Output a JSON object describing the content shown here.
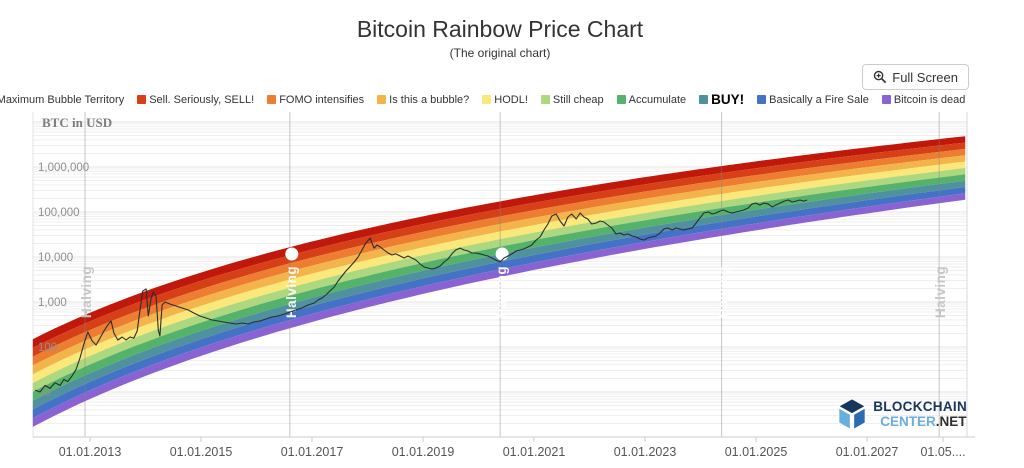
{
  "header": {
    "title": "Bitcoin Rainbow Price Chart",
    "subtitle": "(The original chart)"
  },
  "toolbar": {
    "fullscreen_label": "Full Screen"
  },
  "footer_logo": {
    "line1": "BLOCKCHAIN",
    "line2_light": "CENTER",
    "line2_dark": ".NET"
  },
  "chart_data": {
    "type": "area",
    "title": "Bitcoin Rainbow Price Chart",
    "scale": "log",
    "y_axis": {
      "label": "BTC in USD",
      "ticks": [
        {
          "label": "10",
          "value": 10
        },
        {
          "label": "100",
          "value": 100
        },
        {
          "label": "1,000",
          "value": 1000
        },
        {
          "label": "10,000",
          "value": 10000
        },
        {
          "label": "100,000",
          "value": 100000
        },
        {
          "label": "1,000,000",
          "value": 1000000
        }
      ]
    },
    "x_axis": {
      "ticks": [
        {
          "label": "01.01.2013",
          "year": 2013
        },
        {
          "label": "01.01.2015",
          "year": 2015
        },
        {
          "label": "01.01.2017",
          "year": 2017
        },
        {
          "label": "01.01.2019",
          "year": 2019
        },
        {
          "label": "01.01.2021",
          "year": 2021
        },
        {
          "label": "01.01.2023",
          "year": 2023
        },
        {
          "label": "01.01.2025",
          "year": 2025
        },
        {
          "label": "01.01.2027",
          "year": 2027
        },
        {
          "label": "01.05....",
          "year": 2028.37
        }
      ]
    },
    "bands": [
      {
        "name": "Maximum Bubble Territory",
        "color": "#c1180c"
      },
      {
        "name": "Sell. Seriously, SELL!",
        "color": "#d64018"
      },
      {
        "name": "FOMO intensifies",
        "color": "#ed7d31"
      },
      {
        "name": "Is this a bubble?",
        "color": "#f3b44c"
      },
      {
        "name": "HODL!",
        "color": "#fbe87b"
      },
      {
        "name": "Still cheap",
        "color": "#aed87f"
      },
      {
        "name": "Accumulate",
        "color": "#55b26a"
      },
      {
        "name": "BUY!",
        "color": "#4f929e",
        "emphasis": true
      },
      {
        "name": "Basically a Fire Sale",
        "color": "#4472c4"
      },
      {
        "name": "Bitcoin is dead",
        "color": "#8a63d2"
      }
    ],
    "band_model": {
      "a": -4.145,
      "b": 3.28,
      "y0": 2006.87,
      "hw_start": 0.975,
      "hw_end": 0.705,
      "year_start": 2011.97,
      "year_end": 2028.8
    },
    "halving_label": "Halving",
    "halvings": [
      {
        "year": 2012.91,
        "on_rainbow": false,
        "pill": false
      },
      {
        "year": 2016.6,
        "on_rainbow": true,
        "pill": true
      },
      {
        "year": 2020.39,
        "on_rainbow": true,
        "pill": true
      },
      {
        "year": 2024.38,
        "on_rainbow": true,
        "pill": false
      },
      {
        "year": 2028.3,
        "on_rainbow": false,
        "pill": false
      }
    ],
    "price_series": {
      "name": "BTC price",
      "unit": "USD",
      "points": [
        [
          2012.01,
          11
        ],
        [
          2012.1,
          10
        ],
        [
          2012.19,
          14
        ],
        [
          2012.28,
          12
        ],
        [
          2012.37,
          16
        ],
        [
          2012.46,
          14
        ],
        [
          2012.53,
          19
        ],
        [
          2012.6,
          17
        ],
        [
          2012.68,
          23
        ],
        [
          2012.75,
          32
        ],
        [
          2012.82,
          57
        ],
        [
          2012.89,
          117
        ],
        [
          2012.96,
          215
        ],
        [
          2013.04,
          136
        ],
        [
          2013.11,
          111
        ],
        [
          2013.18,
          158
        ],
        [
          2013.25,
          227
        ],
        [
          2013.32,
          308
        ],
        [
          2013.38,
          378
        ],
        [
          2013.43,
          205
        ],
        [
          2013.5,
          143
        ],
        [
          2013.58,
          167
        ],
        [
          2013.65,
          143
        ],
        [
          2013.72,
          167
        ],
        [
          2013.79,
          158
        ],
        [
          2013.85,
          227
        ],
        [
          2013.9,
          664
        ],
        [
          2013.95,
          1750
        ],
        [
          2014.01,
          1950
        ],
        [
          2014.05,
          489
        ],
        [
          2014.1,
          1170
        ],
        [
          2014.14,
          1670
        ],
        [
          2014.19,
          1360
        ],
        [
          2014.23,
          239
        ],
        [
          2014.26,
          176
        ],
        [
          2014.3,
          857
        ],
        [
          2014.35,
          1000
        ],
        [
          2014.44,
          903
        ],
        [
          2014.55,
          815
        ],
        [
          2014.66,
          736
        ],
        [
          2014.77,
          664
        ],
        [
          2014.87,
          570
        ],
        [
          2014.98,
          489
        ],
        [
          2015.09,
          441
        ],
        [
          2015.2,
          398
        ],
        [
          2015.31,
          378
        ],
        [
          2015.41,
          360
        ],
        [
          2015.52,
          341
        ],
        [
          2015.63,
          324
        ],
        [
          2015.74,
          341
        ],
        [
          2015.85,
          324
        ],
        [
          2015.95,
          360
        ],
        [
          2016.06,
          378
        ],
        [
          2016.17,
          419
        ],
        [
          2016.28,
          464
        ],
        [
          2016.39,
          489
        ],
        [
          2016.5,
          541
        ],
        [
          2016.6,
          600
        ],
        [
          2016.71,
          664
        ],
        [
          2016.82,
          736
        ],
        [
          2016.93,
          857
        ],
        [
          2017.04,
          950
        ],
        [
          2017.11,
          1110
        ],
        [
          2017.18,
          1230
        ],
        [
          2017.25,
          1430
        ],
        [
          2017.32,
          1750
        ],
        [
          2017.4,
          2150
        ],
        [
          2017.47,
          2930
        ],
        [
          2017.54,
          3780
        ],
        [
          2017.61,
          4890
        ],
        [
          2017.68,
          6000
        ],
        [
          2017.76,
          7750
        ],
        [
          2017.83,
          10000
        ],
        [
          2017.9,
          14300
        ],
        [
          2017.97,
          20500
        ],
        [
          2018.05,
          26400
        ],
        [
          2018.08,
          20500
        ],
        [
          2018.12,
          15800
        ],
        [
          2018.17,
          18500
        ],
        [
          2018.23,
          16700
        ],
        [
          2018.3,
          14300
        ],
        [
          2018.37,
          12300
        ],
        [
          2018.44,
          11100
        ],
        [
          2018.51,
          11700
        ],
        [
          2018.59,
          10500
        ],
        [
          2018.66,
          9500
        ],
        [
          2018.73,
          10500
        ],
        [
          2018.8,
          9500
        ],
        [
          2018.87,
          8570
        ],
        [
          2018.95,
          6980
        ],
        [
          2019.02,
          6000
        ],
        [
          2019.09,
          5700
        ],
        [
          2019.16,
          5410
        ],
        [
          2019.23,
          5700
        ],
        [
          2019.31,
          6310
        ],
        [
          2019.38,
          7750
        ],
        [
          2019.45,
          9030
        ],
        [
          2019.52,
          11700
        ],
        [
          2019.59,
          14300
        ],
        [
          2019.67,
          15800
        ],
        [
          2019.74,
          14300
        ],
        [
          2019.81,
          13600
        ],
        [
          2019.88,
          12300
        ],
        [
          2019.95,
          12300
        ],
        [
          2020.03,
          11700
        ],
        [
          2020.1,
          11100
        ],
        [
          2020.17,
          10500
        ],
        [
          2020.24,
          9500
        ],
        [
          2020.31,
          8570
        ],
        [
          2020.39,
          7750
        ],
        [
          2020.46,
          9500
        ],
        [
          2020.53,
          10500
        ],
        [
          2020.6,
          11700
        ],
        [
          2020.68,
          13600
        ],
        [
          2020.75,
          14300
        ],
        [
          2020.82,
          15100
        ],
        [
          2020.89,
          16700
        ],
        [
          2020.96,
          18500
        ],
        [
          2021.04,
          23900
        ],
        [
          2021.11,
          27800
        ],
        [
          2021.18,
          39800
        ],
        [
          2021.25,
          54100
        ],
        [
          2021.32,
          81500
        ],
        [
          2021.4,
          90300
        ],
        [
          2021.47,
          63100
        ],
        [
          2021.54,
          48900
        ],
        [
          2021.61,
          77500
        ],
        [
          2021.68,
          90300
        ],
        [
          2021.76,
          69800
        ],
        [
          2021.83,
          95000
        ],
        [
          2021.9,
          77500
        ],
        [
          2021.97,
          69800
        ],
        [
          2022.04,
          54100
        ],
        [
          2022.12,
          57000
        ],
        [
          2022.19,
          63100
        ],
        [
          2022.26,
          60000
        ],
        [
          2022.33,
          51400
        ],
        [
          2022.4,
          44100
        ],
        [
          2022.48,
          32400
        ],
        [
          2022.55,
          34100
        ],
        [
          2022.62,
          30800
        ],
        [
          2022.69,
          32400
        ],
        [
          2022.77,
          29300
        ],
        [
          2022.84,
          27800
        ],
        [
          2022.91,
          25100
        ],
        [
          2022.98,
          23900
        ],
        [
          2023.05,
          26400
        ],
        [
          2023.12,
          27800
        ],
        [
          2023.2,
          29300
        ],
        [
          2023.27,
          34100
        ],
        [
          2023.34,
          41900
        ],
        [
          2023.41,
          44100
        ],
        [
          2023.49,
          39800
        ],
        [
          2023.56,
          44100
        ],
        [
          2023.63,
          41900
        ],
        [
          2023.7,
          39800
        ],
        [
          2023.77,
          41900
        ],
        [
          2023.85,
          44100
        ],
        [
          2023.92,
          57000
        ],
        [
          2023.99,
          73600
        ],
        [
          2024.06,
          95000
        ],
        [
          2024.14,
          100000
        ],
        [
          2024.21,
          90300
        ],
        [
          2024.28,
          95000
        ],
        [
          2024.35,
          105000
        ],
        [
          2024.42,
          111000
        ],
        [
          2024.5,
          100000
        ],
        [
          2024.57,
          95000
        ],
        [
          2024.64,
          100000
        ],
        [
          2024.71,
          105000
        ],
        [
          2024.78,
          111000
        ],
        [
          2024.86,
          123000
        ],
        [
          2024.93,
          151000
        ],
        [
          2025.0,
          158000
        ],
        [
          2025.07,
          143000
        ],
        [
          2025.14,
          158000
        ],
        [
          2025.22,
          151000
        ],
        [
          2025.29,
          129000
        ],
        [
          2025.36,
          143000
        ],
        [
          2025.43,
          158000
        ],
        [
          2025.51,
          175000
        ],
        [
          2025.58,
          185000
        ],
        [
          2025.65,
          167000
        ],
        [
          2025.72,
          175000
        ],
        [
          2025.79,
          185000
        ],
        [
          2025.86,
          175000
        ],
        [
          2025.92,
          185000
        ]
      ]
    }
  }
}
